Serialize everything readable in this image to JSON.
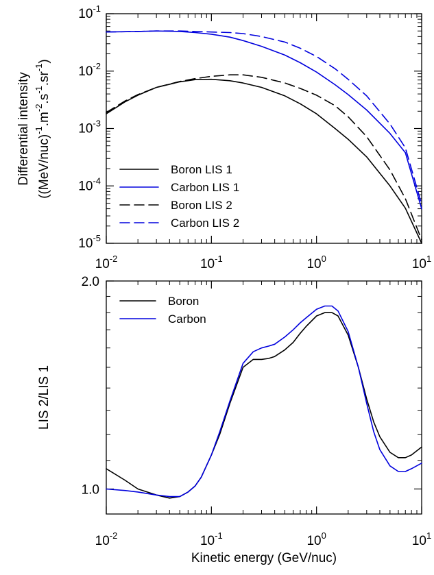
{
  "chart_data": [
    {
      "type": "line",
      "ylabel_lines": [
        "Differential intensity",
        "((MeV/nuc)",
        "-1",
        ".m",
        "-2",
        ".s",
        "-1",
        ".sr",
        "-1",
        ")"
      ],
      "xscale": "log",
      "yscale": "log",
      "xlim": [
        0.01,
        10
      ],
      "ylim": [
        1e-05,
        0.1
      ],
      "xtick_labels": [
        {
          "base": "10",
          "exp": "-2"
        },
        {
          "base": "10",
          "exp": "-1"
        },
        {
          "base": "10",
          "exp": "0"
        },
        {
          "base": "10",
          "exp": "1"
        }
      ],
      "ytick_labels": [
        {
          "base": "10",
          "exp": "-5"
        },
        {
          "base": "10",
          "exp": "-4"
        },
        {
          "base": "10",
          "exp": "-3"
        },
        {
          "base": "10",
          "exp": "-2"
        },
        {
          "base": "10",
          "exp": "-1"
        }
      ],
      "legend_position": "bottom-left",
      "grid": false,
      "series": [
        {
          "name": "Boron LIS 1",
          "color": "#000000",
          "dash": "solid",
          "x": [
            0.01,
            0.015,
            0.02,
            0.03,
            0.05,
            0.07,
            0.1,
            0.15,
            0.2,
            0.3,
            0.5,
            0.7,
            1,
            1.5,
            2,
            3,
            5,
            7,
            10
          ],
          "y": [
            0.0018,
            0.0029,
            0.0038,
            0.0052,
            0.0065,
            0.0071,
            0.0072,
            0.0068,
            0.0062,
            0.0052,
            0.0037,
            0.0027,
            0.0018,
            0.001,
            0.00065,
            0.00032,
            0.0001,
            4.1e-05,
            9.5e-06
          ]
        },
        {
          "name": "Carbon LIS 1",
          "color": "#0000dd",
          "dash": "solid",
          "x": [
            0.01,
            0.02,
            0.03,
            0.05,
            0.07,
            0.1,
            0.15,
            0.2,
            0.3,
            0.5,
            0.7,
            1,
            1.5,
            2,
            3,
            5,
            7,
            10
          ],
          "y": [
            0.048,
            0.049,
            0.05,
            0.049,
            0.047,
            0.044,
            0.039,
            0.034,
            0.027,
            0.019,
            0.014,
            0.0096,
            0.0058,
            0.0039,
            0.0021,
            0.00082,
            0.00038,
            4e-05
          ]
        },
        {
          "name": "Boron LIS 2",
          "color": "#000000",
          "dash": "dashed",
          "x": [
            0.01,
            0.015,
            0.02,
            0.03,
            0.05,
            0.07,
            0.1,
            0.15,
            0.2,
            0.3,
            0.5,
            0.7,
            1,
            1.5,
            2,
            3,
            5,
            7,
            10
          ],
          "y": [
            0.0019,
            0.003,
            0.0039,
            0.0052,
            0.0066,
            0.0074,
            0.0081,
            0.0086,
            0.0086,
            0.0078,
            0.0062,
            0.005,
            0.0038,
            0.0025,
            0.0016,
            0.00072,
            0.00019,
            6e-05,
            1.15e-05
          ]
        },
        {
          "name": "Carbon LIS 2",
          "color": "#0000dd",
          "dash": "dashed",
          "x": [
            0.01,
            0.02,
            0.03,
            0.05,
            0.07,
            0.1,
            0.15,
            0.2,
            0.3,
            0.5,
            0.7,
            1,
            1.5,
            2,
            3,
            5,
            7,
            10
          ],
          "y": [
            0.048,
            0.049,
            0.05,
            0.05,
            0.049,
            0.048,
            0.047,
            0.045,
            0.04,
            0.032,
            0.025,
            0.018,
            0.011,
            0.0072,
            0.0037,
            0.0012,
            0.00046,
            4.8e-05
          ]
        }
      ]
    },
    {
      "type": "line",
      "ylabel": "LIS 2/LIS 1",
      "xlabel": "Kinetic energy (GeV/nuc)",
      "xscale": "log",
      "yscale": "log",
      "xlim": [
        0.01,
        10
      ],
      "ylim": [
        0.92,
        2.0
      ],
      "xtick_labels": [
        {
          "base": "10",
          "exp": "-2"
        },
        {
          "base": "10",
          "exp": "-1"
        },
        {
          "base": "10",
          "exp": "0"
        },
        {
          "base": "10",
          "exp": "1"
        }
      ],
      "ytick_labels": [
        "1.0",
        "2.0"
      ],
      "legend_position": "top-left",
      "grid": false,
      "series": [
        {
          "name": "Boron",
          "color": "#000000",
          "x": [
            0.01,
            0.015,
            0.02,
            0.03,
            0.04,
            0.05,
            0.06,
            0.07,
            0.08,
            0.1,
            0.12,
            0.15,
            0.2,
            0.25,
            0.3,
            0.35,
            0.4,
            0.5,
            0.6,
            0.7,
            0.8,
            1.0,
            1.2,
            1.4,
            1.6,
            2.0,
            2.5,
            3.0,
            3.5,
            4.0,
            5.0,
            6.0,
            7.0,
            8.0,
            10.0
          ],
          "y": [
            1.07,
            1.03,
            1.0,
            0.98,
            0.97,
            0.975,
            0.99,
            1.01,
            1.04,
            1.12,
            1.2,
            1.33,
            1.5,
            1.54,
            1.54,
            1.545,
            1.555,
            1.59,
            1.63,
            1.68,
            1.72,
            1.78,
            1.8,
            1.8,
            1.78,
            1.67,
            1.5,
            1.35,
            1.25,
            1.19,
            1.13,
            1.11,
            1.11,
            1.12,
            1.15
          ]
        },
        {
          "name": "Carbon",
          "color": "#0000dd",
          "x": [
            0.01,
            0.015,
            0.02,
            0.03,
            0.04,
            0.05,
            0.06,
            0.07,
            0.08,
            0.1,
            0.12,
            0.15,
            0.2,
            0.25,
            0.3,
            0.35,
            0.4,
            0.5,
            0.6,
            0.7,
            0.8,
            1.0,
            1.2,
            1.4,
            1.6,
            2.0,
            2.5,
            3.0,
            3.5,
            4.0,
            5.0,
            6.0,
            7.0,
            8.0,
            10.0
          ],
          "y": [
            1.0,
            0.995,
            0.99,
            0.98,
            0.975,
            0.975,
            0.99,
            1.01,
            1.04,
            1.12,
            1.21,
            1.34,
            1.52,
            1.58,
            1.6,
            1.61,
            1.62,
            1.66,
            1.7,
            1.74,
            1.77,
            1.82,
            1.84,
            1.84,
            1.81,
            1.69,
            1.5,
            1.33,
            1.21,
            1.14,
            1.08,
            1.06,
            1.06,
            1.07,
            1.09
          ]
        }
      ]
    }
  ]
}
